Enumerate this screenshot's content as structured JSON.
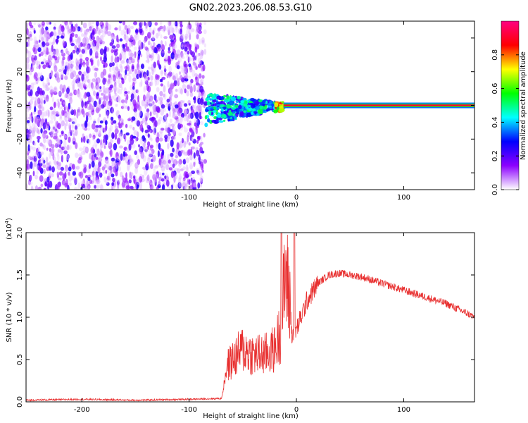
{
  "title": "GN02.2023.206.08.53.G10",
  "chart_data": [
    {
      "type": "heatmap",
      "xlabel": "Height of straight line (km)",
      "ylabel": "Frequency (Hz)",
      "xlim": [
        -252,
        166
      ],
      "ylim": [
        -50,
        50
      ],
      "xticks": [
        -200,
        -100,
        0,
        100
      ],
      "yticks": [
        -40,
        -20,
        0,
        20,
        40
      ],
      "colorbar": {
        "label": "Normalized spectral amplitude",
        "range": [
          0,
          1
        ],
        "ticks": [
          0.0,
          0.2,
          0.4,
          0.6,
          0.8
        ],
        "colors": [
          "#ffffff",
          "#8c00ff",
          "#0000ff",
          "#00ffff",
          "#00ff00",
          "#ffff00",
          "#ff0000",
          "#ff0080"
        ]
      },
      "regions": [
        {
          "x": [
            -252,
            -85
          ],
          "freq": [
            -50,
            50
          ],
          "amplitude": [
            0.0,
            0.25
          ],
          "note_color": "#8c00ff"
        },
        {
          "x": [
            -85,
            -20
          ],
          "freq": [
            -12,
            8
          ],
          "amplitude": [
            0.2,
            0.55
          ]
        },
        {
          "x": [
            -20,
            -12
          ],
          "freq": [
            -4,
            2
          ],
          "amplitude": [
            0.5,
            0.9
          ]
        },
        {
          "x": [
            -12,
            166
          ],
          "freq": [
            0,
            0
          ],
          "amplitude": [
            0.85,
            1.0
          ]
        }
      ]
    },
    {
      "type": "line",
      "xlabel": "Height of straight line (km)",
      "ylabel": "SNR (10 * v/v)",
      "yscale_label": "(x10",
      "yscale_exp": "4",
      "yscale_close": ")",
      "xlim": [
        -252,
        166
      ],
      "ylim": [
        0,
        2.0
      ],
      "xticks": [
        -200,
        -100,
        0,
        100
      ],
      "yticks": [
        "0.0",
        "0.5",
        "1.0",
        "1.5",
        "2.0"
      ],
      "color": "#e83030",
      "series": [
        {
          "x": [
            -252,
            -200,
            -150,
            -100,
            -70,
            -65,
            -60,
            -50,
            -40,
            -30,
            -20,
            -15,
            -12,
            -10,
            -5,
            0,
            10,
            20,
            30,
            40,
            50,
            60,
            70,
            80,
            90,
            100,
            110,
            120,
            130,
            140,
            150,
            160,
            166
          ],
          "y": [
            0.02,
            0.03,
            0.02,
            0.03,
            0.04,
            0.3,
            0.35,
            0.45,
            0.4,
            0.4,
            0.45,
            0.6,
            0.9,
            1.1,
            0.8,
            0.85,
            1.2,
            1.4,
            1.5,
            1.52,
            1.5,
            1.48,
            1.44,
            1.4,
            1.36,
            1.32,
            1.28,
            1.24,
            1.2,
            1.16,
            1.1,
            1.04,
            1.0
          ]
        }
      ],
      "spikes": [
        {
          "x": -14,
          "y": 2.0
        },
        {
          "x": -2,
          "y": 2.0
        }
      ]
    }
  ]
}
